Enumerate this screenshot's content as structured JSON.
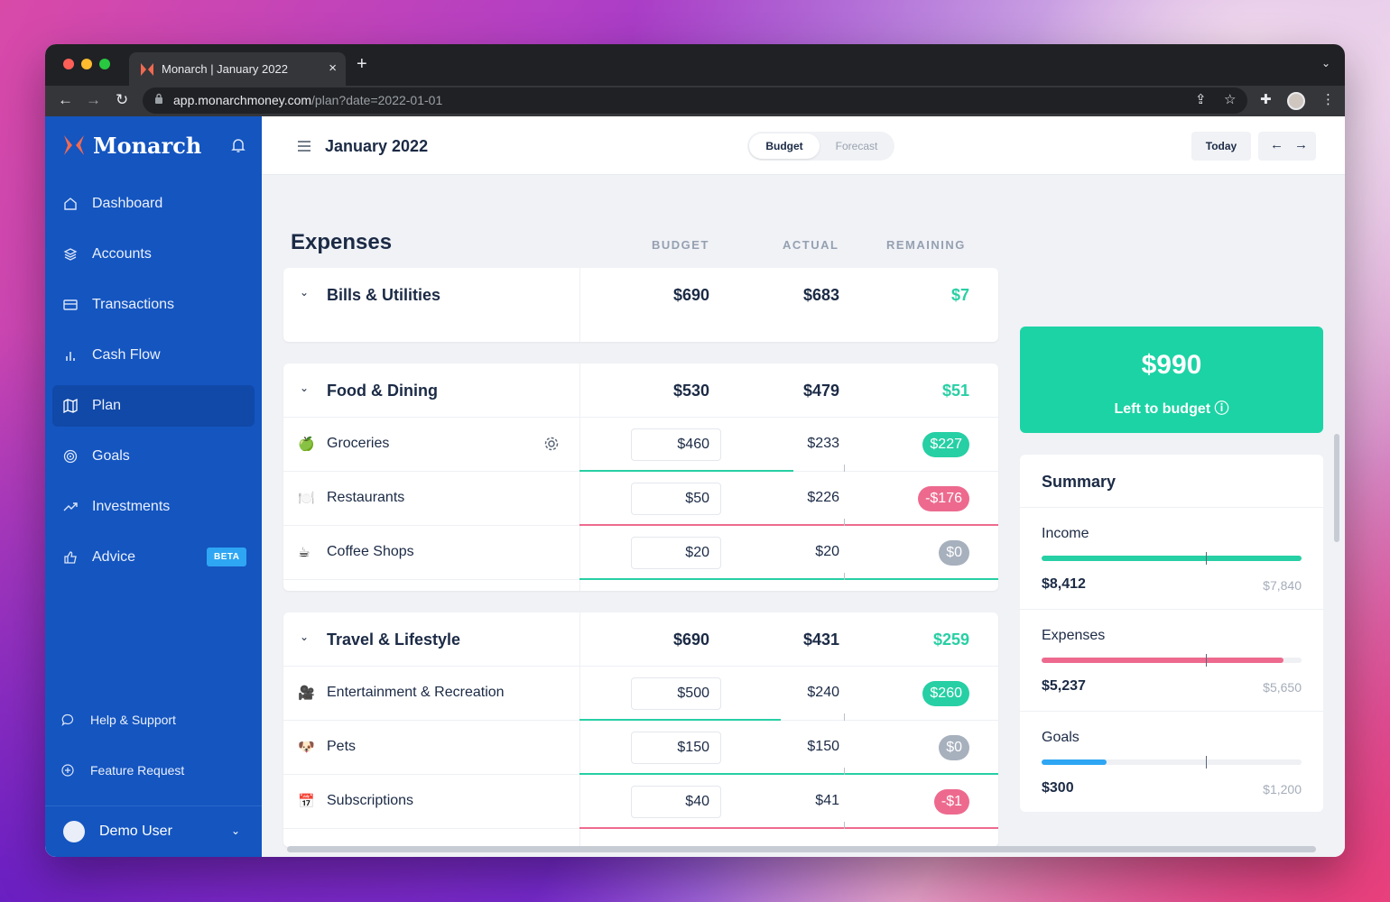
{
  "browser": {
    "tab_title": "Monarch | January 2022",
    "url_host": "app.monarchmoney.com",
    "url_path": "/plan?date=2022-01-01"
  },
  "sidebar": {
    "brand": "Monarch",
    "items": [
      {
        "label": "Dashboard",
        "icon": "home-icon"
      },
      {
        "label": "Accounts",
        "icon": "layers-icon"
      },
      {
        "label": "Transactions",
        "icon": "card-icon"
      },
      {
        "label": "Cash Flow",
        "icon": "bar-chart-icon"
      },
      {
        "label": "Plan",
        "icon": "map-icon",
        "active": true
      },
      {
        "label": "Goals",
        "icon": "target-icon"
      },
      {
        "label": "Investments",
        "icon": "trending-up-icon"
      },
      {
        "label": "Advice",
        "icon": "thumbs-up-icon",
        "badge": "BETA"
      }
    ],
    "footer": [
      {
        "label": "Help & Support",
        "icon": "chat-icon"
      },
      {
        "label": "Feature Request",
        "icon": "plus-circle-icon"
      }
    ],
    "user": "Demo User"
  },
  "topbar": {
    "month": "January 2022",
    "toggle": {
      "active": "Budget",
      "inactive": "Forecast"
    },
    "today": "Today"
  },
  "expenses": {
    "title": "Expenses",
    "columns": {
      "budget": "BUDGET",
      "actual": "ACTUAL",
      "remaining": "REMAINING"
    },
    "groups": [
      {
        "name": "Bills & Utilities",
        "budget": "$690",
        "actual": "$683",
        "remaining": "$7",
        "categories": []
      },
      {
        "name": "Food & Dining",
        "budget": "$530",
        "actual": "$479",
        "remaining": "$51",
        "categories": [
          {
            "emoji": "🍏",
            "name": "Groceries",
            "budget": "$460",
            "actual": "$233",
            "remaining": "$227",
            "status": "pos",
            "progress": 0.51
          },
          {
            "emoji": "🍽️",
            "name": "Restaurants",
            "budget": "$50",
            "actual": "$226",
            "remaining": "-$176",
            "status": "neg",
            "progress": 1.0
          },
          {
            "emoji": "☕",
            "name": "Coffee Shops",
            "budget": "$20",
            "actual": "$20",
            "remaining": "$0",
            "status": "zero",
            "progress": 1.0
          }
        ]
      },
      {
        "name": "Travel & Lifestyle",
        "budget": "$690",
        "actual": "$431",
        "remaining": "$259",
        "categories": [
          {
            "emoji": "🎥",
            "name": "Entertainment & Recreation",
            "budget": "$500",
            "actual": "$240",
            "remaining": "$260",
            "status": "pos",
            "progress": 0.48
          },
          {
            "emoji": "🐶",
            "name": "Pets",
            "budget": "$150",
            "actual": "$150",
            "remaining": "$0",
            "status": "zero",
            "progress": 1.0
          },
          {
            "emoji": "📅",
            "name": "Subscriptions",
            "budget": "$40",
            "actual": "$41",
            "remaining": "-$1",
            "status": "neg",
            "progress": 1.0
          }
        ]
      }
    ]
  },
  "left_to_budget": {
    "amount": "$990",
    "label": "Left to budget"
  },
  "summary": {
    "title": "Summary",
    "rows": [
      {
        "label": "Income",
        "value": "$8,412",
        "budget": "$7,840",
        "progress": 1.0,
        "color": "#27cfa4"
      },
      {
        "label": "Expenses",
        "value": "$5,237",
        "budget": "$5,650",
        "progress": 0.93,
        "color": "#ed6a8e"
      },
      {
        "label": "Goals",
        "value": "$300",
        "budget": "$1,200",
        "progress": 0.25,
        "color": "#2ea6f3"
      }
    ]
  },
  "colors": {
    "sidebar": "#1455c0",
    "accent_green": "#1cd3a5",
    "negative": "#ed6a8e",
    "zero": "#a7b0bd"
  }
}
